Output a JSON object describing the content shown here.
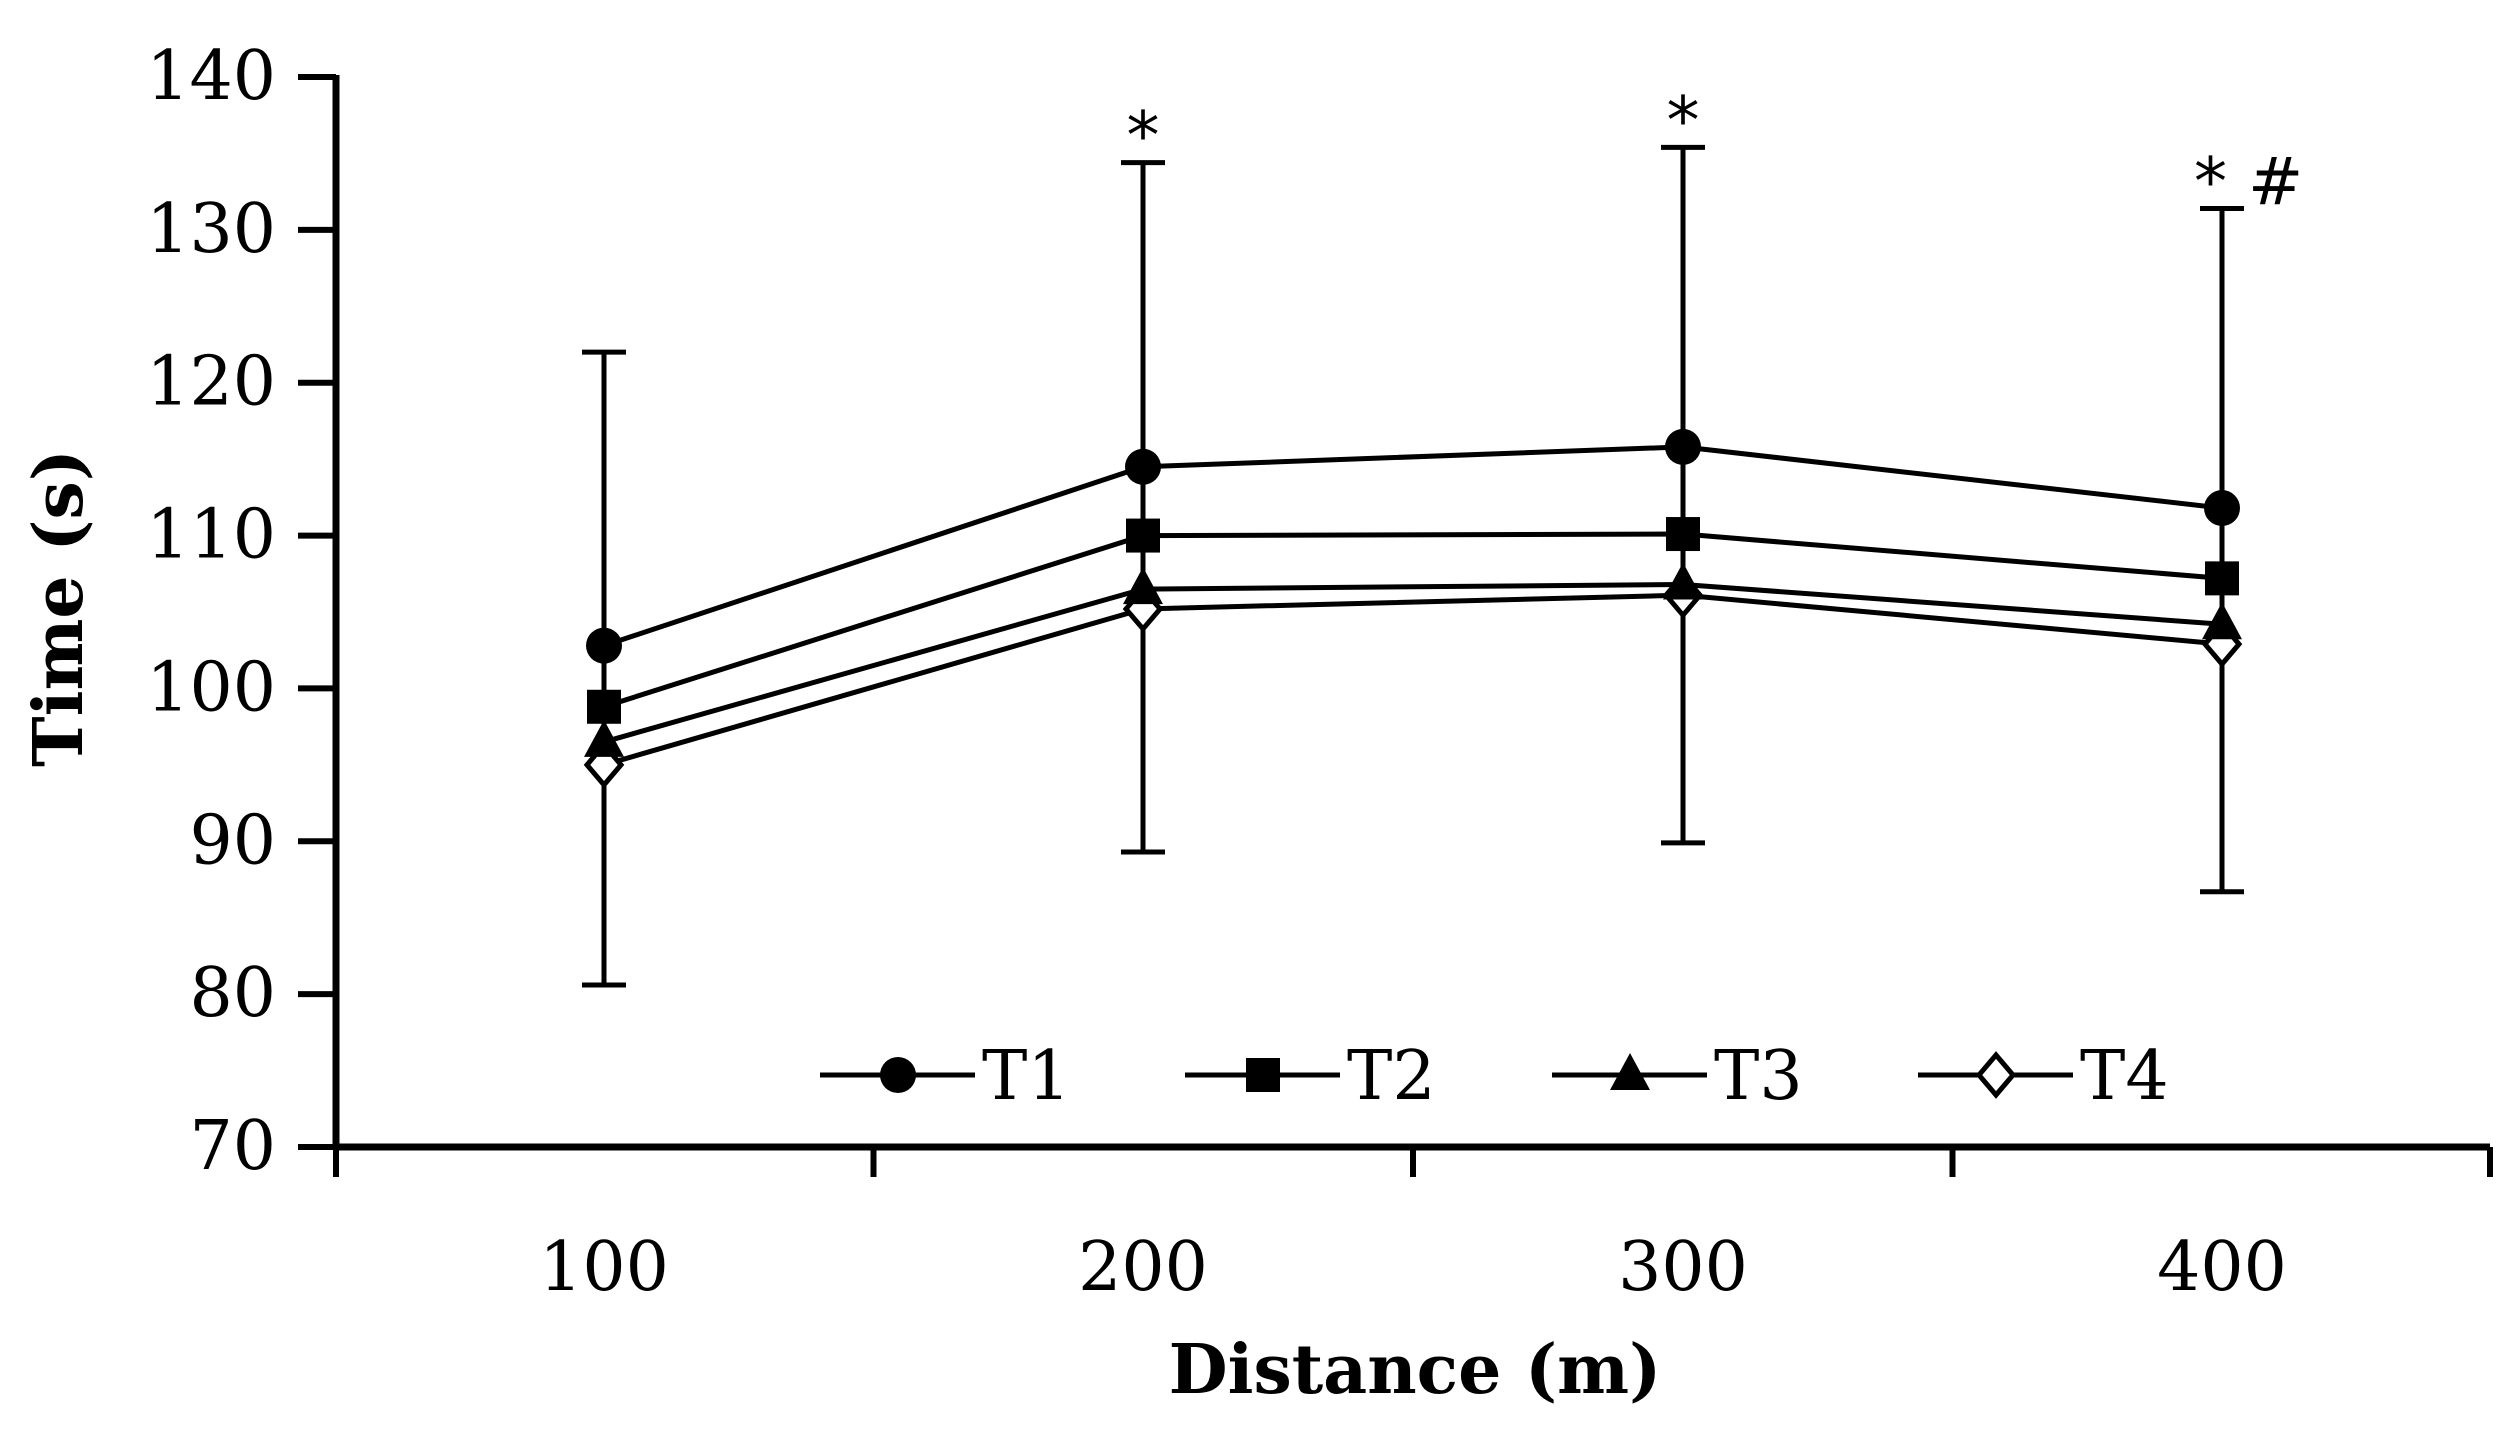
{
  "chart_data": {
    "type": "line",
    "title": "",
    "xlabel": "Distance (m)",
    "ylabel": "Time (s)",
    "categories": [
      "100",
      "200",
      "300",
      "400"
    ],
    "x": [
      100,
      200,
      300,
      400
    ],
    "ylim": [
      70,
      140
    ],
    "yticks": [
      70,
      80,
      90,
      100,
      110,
      120,
      130,
      140
    ],
    "grid": false,
    "legend_position": "bottom-inside",
    "series": [
      {
        "name": "T1",
        "marker": "circle",
        "values": [
          102.8,
          114.5,
          115.8,
          111.8
        ]
      },
      {
        "name": "T2",
        "marker": "square",
        "values": [
          98.8,
          110.0,
          110.1,
          107.2
        ]
      },
      {
        "name": "T3",
        "marker": "triangle",
        "values": [
          96.5,
          106.5,
          106.8,
          104.2
        ]
      },
      {
        "name": "T4",
        "marker": "diamond-open",
        "values": [
          95.0,
          105.2,
          106.1,
          102.9
        ]
      }
    ],
    "error_bars": [
      {
        "x": 100,
        "low": 80.6,
        "high": 122.0
      },
      {
        "x": 200,
        "low": 89.3,
        "high": 134.4
      },
      {
        "x": 300,
        "low": 89.9,
        "high": 135.4
      },
      {
        "x": 400,
        "low": 86.7,
        "high": 131.4
      }
    ],
    "annotations": [
      {
        "x": 200,
        "text": "*"
      },
      {
        "x": 300,
        "text": "*"
      },
      {
        "x": 400,
        "text": "* #"
      }
    ]
  }
}
